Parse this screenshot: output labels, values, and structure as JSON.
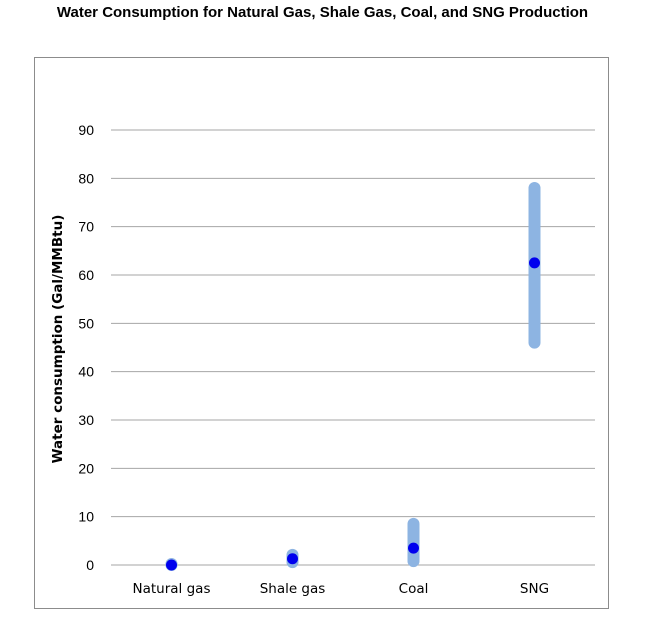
{
  "chart_data": {
    "type": "scatter",
    "title": "Water Consumption for Natural Gas, Shale Gas, Coal, and SNG Production",
    "xlabel": "",
    "ylabel": "Water consumption (Gal/MMBtu)",
    "ylim": [
      0,
      90
    ],
    "yticks": [
      0,
      10,
      20,
      30,
      40,
      50,
      60,
      70,
      80,
      90
    ],
    "grid": true,
    "categories": [
      "Natural gas",
      "Shale gas",
      "Coal",
      "SNG"
    ],
    "point": [
      0,
      1.3,
      3.5,
      62.5
    ],
    "range_low": [
      0,
      0.6,
      0.8,
      46
    ],
    "range_high": [
      0.2,
      2.1,
      8.5,
      78
    ],
    "colors": {
      "point": "#0000ee",
      "range": "#8db4e2",
      "grid": "#a6a6a6"
    }
  }
}
